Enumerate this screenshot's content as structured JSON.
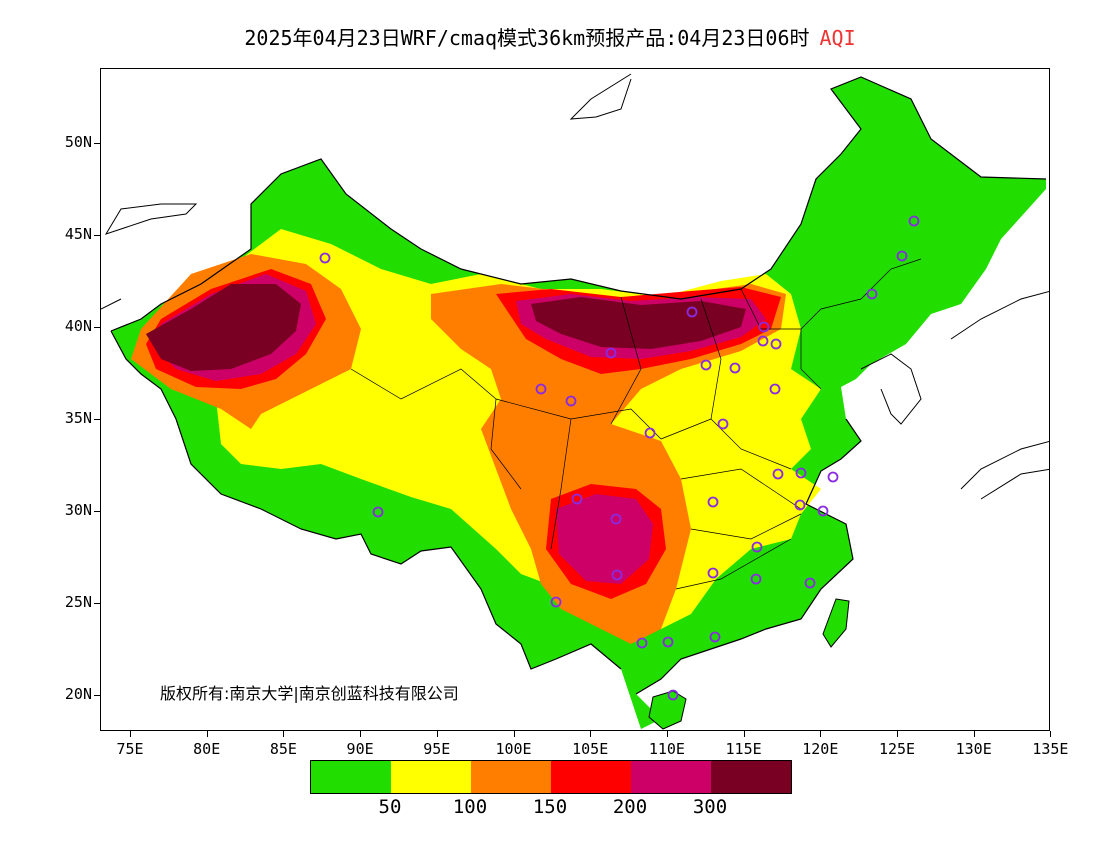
{
  "title": {
    "main": "2025年04月23日WRF/cmaq模式36km预报产品:04月23日06时",
    "variable": "AQI",
    "variable_color": "#ee3333"
  },
  "map": {
    "lat_labels": [
      "50N",
      "45N",
      "40N",
      "35N",
      "30N",
      "25N",
      "20N"
    ],
    "lon_labels": [
      "75E",
      "80E",
      "85E",
      "90E",
      "95E",
      "100E",
      "105E",
      "110E",
      "115E",
      "120E",
      "125E",
      "130E",
      "135E"
    ],
    "copyright": "版权所有:南京大学|南京创蓝科技有限公司",
    "station_marker": "circle-icon",
    "station_color": "#8a2be2"
  },
  "legend": {
    "colors": [
      "#22dd00",
      "#ffff00",
      "#ff7e00",
      "#ff0000",
      "#cc0066",
      "#7a0023"
    ],
    "thresholds": [
      "50",
      "100",
      "150",
      "200",
      "300"
    ]
  }
}
